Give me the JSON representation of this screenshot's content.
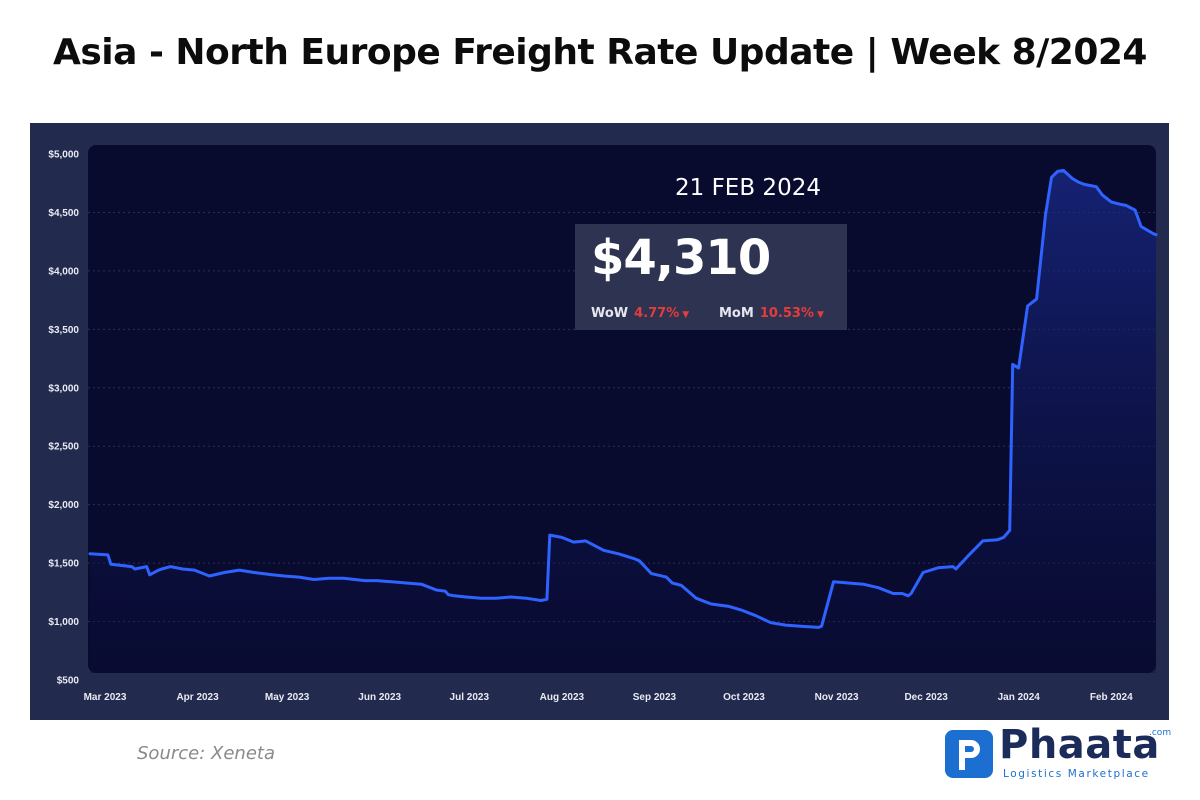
{
  "title": "Asia - North Europe Freight Rate Update | Week 8/2024",
  "source": "Source: Xeneta",
  "logo": {
    "name": "Phaata",
    "com": ".com",
    "tagline": "Logistics Marketplace",
    "mark_letter": "P"
  },
  "callout": {
    "date": "21 FEB 2024",
    "price": "$4,310",
    "wow_label": "WoW",
    "wow_value": "4.77%",
    "mom_label": "MoM",
    "mom_value": "10.53%",
    "change_direction": "down"
  },
  "colors": {
    "line": "#2f63ff",
    "panel": "#080a2e",
    "frame": "#222a4d",
    "negative": "#e53c3c"
  },
  "chart_data": {
    "type": "area",
    "title": "",
    "xlabel": "",
    "ylabel": "",
    "ylim": [
      500,
      5000
    ],
    "yticks": [
      "$500",
      "$1,000",
      "$1,500",
      "$2,000",
      "$2,500",
      "$3,000",
      "$3,500",
      "$4,000",
      "$4,500",
      "$5,000"
    ],
    "xticks": [
      "Mar 2023",
      "Apr 2023",
      "May 2023",
      "Jun 2023",
      "Jul 2023",
      "Aug 2023",
      "Sep 2023",
      "Oct 2023",
      "Nov 2023",
      "Dec 2023",
      "Jan 2024",
      "Feb 2024"
    ],
    "grid": true,
    "series": [
      {
        "x": [
          "2023-03-01",
          "2023-03-07",
          "2023-03-08",
          "2023-03-15",
          "2023-03-16",
          "2023-03-20",
          "2023-03-21",
          "2023-03-24",
          "2023-03-25",
          "2023-03-28",
          "2023-04-01",
          "2023-04-05",
          "2023-04-10",
          "2023-04-15",
          "2023-04-20",
          "2023-04-25",
          "2023-05-01",
          "2023-05-05",
          "2023-05-10",
          "2023-05-15",
          "2023-05-20",
          "2023-05-25",
          "2023-06-01",
          "2023-06-05",
          "2023-06-10",
          "2023-06-15",
          "2023-06-20",
          "2023-06-25",
          "2023-06-28",
          "2023-06-29",
          "2023-07-01",
          "2023-07-05",
          "2023-07-10",
          "2023-07-15",
          "2023-07-20",
          "2023-07-25",
          "2023-07-30",
          "2023-08-01",
          "2023-08-02",
          "2023-08-06",
          "2023-08-10",
          "2023-08-14",
          "2023-08-20",
          "2023-08-25",
          "2023-08-30",
          "2023-09-01",
          "2023-09-05",
          "2023-09-10",
          "2023-09-12",
          "2023-09-15",
          "2023-09-20",
          "2023-09-25",
          "2023-10-01",
          "2023-10-05",
          "2023-10-10",
          "2023-10-15",
          "2023-10-20",
          "2023-10-25",
          "2023-10-31",
          "2023-11-01",
          "2023-11-05",
          "2023-11-10",
          "2023-11-15",
          "2023-11-20",
          "2023-11-25",
          "2023-11-28",
          "2023-11-30",
          "2023-12-01",
          "2023-12-05",
          "2023-12-10",
          "2023-12-15",
          "2023-12-16",
          "2023-12-20",
          "2023-12-25",
          "2023-12-30",
          "2024-01-01",
          "2024-01-03",
          "2024-01-04",
          "2024-01-06",
          "2024-01-09",
          "2024-01-12",
          "2024-01-15",
          "2024-01-17",
          "2024-01-19",
          "2024-01-21",
          "2024-01-24",
          "2024-01-26",
          "2024-01-28",
          "2024-02-01",
          "2024-02-03",
          "2024-02-06",
          "2024-02-09",
          "2024-02-11",
          "2024-02-14",
          "2024-02-16",
          "2024-02-20",
          "2024-02-21"
        ],
        "values": [
          1580,
          1570,
          1490,
          1470,
          1450,
          1470,
          1400,
          1440,
          1450,
          1470,
          1450,
          1440,
          1390,
          1420,
          1440,
          1420,
          1400,
          1390,
          1380,
          1360,
          1370,
          1370,
          1350,
          1350,
          1340,
          1330,
          1320,
          1270,
          1260,
          1230,
          1220,
          1210,
          1200,
          1200,
          1210,
          1200,
          1180,
          1190,
          1740,
          1720,
          1680,
          1690,
          1610,
          1580,
          1540,
          1520,
          1410,
          1380,
          1330,
          1310,
          1200,
          1150,
          1130,
          1100,
          1050,
          990,
          970,
          960,
          950,
          960,
          1340,
          1330,
          1320,
          1290,
          1240,
          1240,
          1220,
          1240,
          1420,
          1460,
          1470,
          1450,
          1560,
          1690,
          1700,
          1720,
          1780,
          3200,
          3170,
          3700,
          3760,
          4480,
          4800,
          4850,
          4860,
          4790,
          4760,
          4740,
          4720,
          4650,
          4590,
          4570,
          4560,
          4520,
          4380,
          4320,
          4310
        ]
      }
    ]
  }
}
